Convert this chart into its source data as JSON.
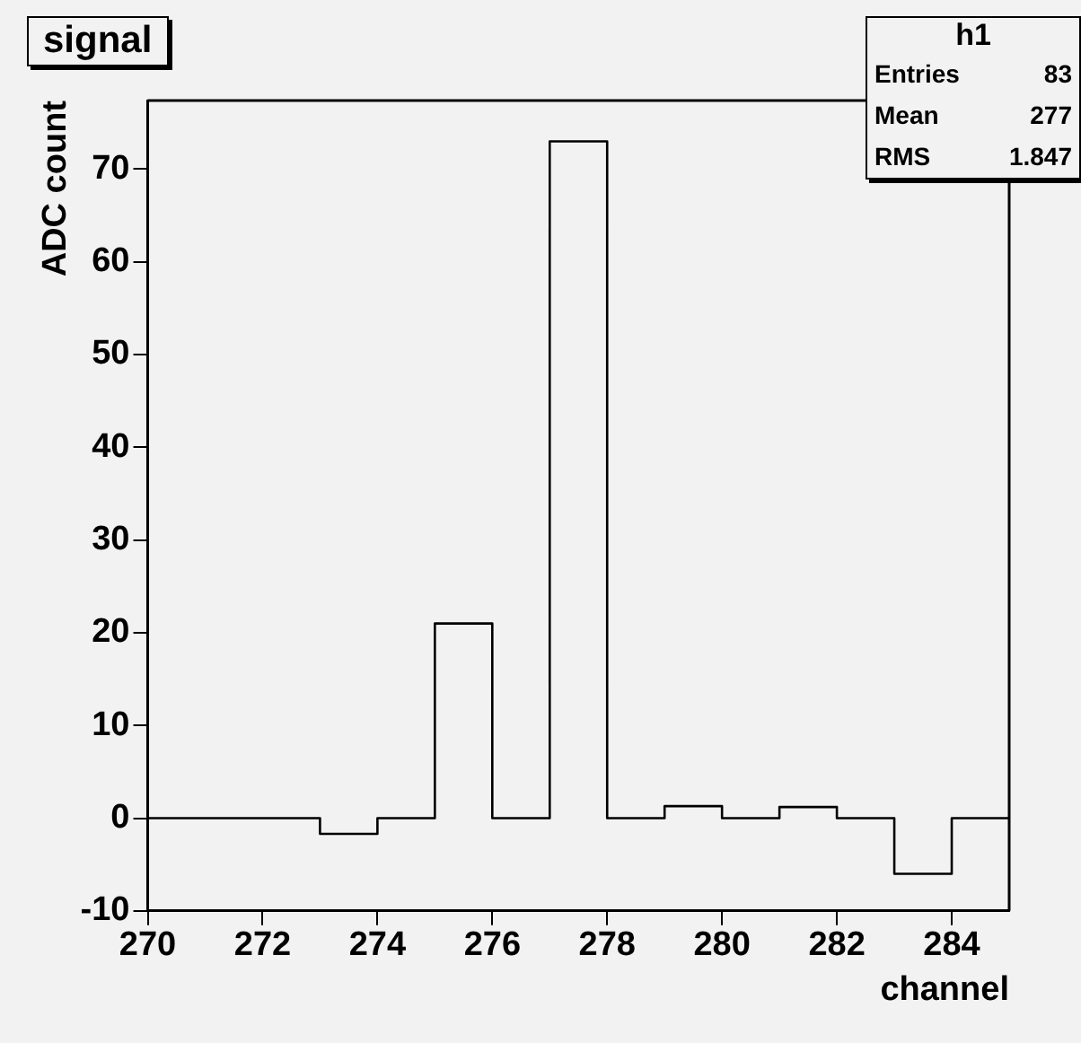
{
  "chart_data": {
    "type": "histogram",
    "title": "signal",
    "xlabel": "channel",
    "ylabel": "ADC count",
    "bins": [
      270,
      271,
      272,
      273,
      274,
      275,
      276,
      277,
      278,
      279,
      280,
      281,
      282,
      283,
      284,
      285
    ],
    "values": [
      0,
      0,
      0,
      -1.7,
      0,
      21,
      0,
      73,
      0,
      1.3,
      0,
      1.2,
      0,
      -6,
      0
    ],
    "color": "#000000",
    "xlim": [
      270,
      285
    ],
    "xticks": [
      270,
      272,
      274,
      276,
      278,
      280,
      282,
      284
    ],
    "ylim": [
      -10,
      77.4
    ],
    "yticks": [
      -10,
      0,
      10,
      20,
      30,
      40,
      50,
      60,
      70
    ],
    "annotations": [
      "h1",
      "Entries",
      "83",
      "Mean",
      "277",
      "RMS",
      "1.847"
    ],
    "grid": false,
    "legend": false
  }
}
